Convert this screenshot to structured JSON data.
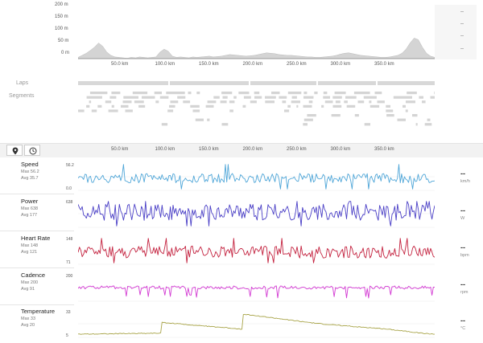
{
  "elevation": {
    "y_ticks": [
      "200 m",
      "150 m",
      "100 m",
      "50 m",
      "0 m"
    ],
    "fill_color": "#d4d4d4",
    "profile": [
      5,
      10,
      15,
      22,
      30,
      40,
      32,
      18,
      10,
      6,
      5,
      4,
      3,
      5,
      4,
      6,
      5,
      4,
      5,
      6,
      18,
      25,
      20,
      8,
      5,
      6,
      5,
      4,
      6,
      5,
      6,
      7,
      8,
      6,
      7,
      8,
      10,
      12,
      11,
      10,
      9,
      8,
      9,
      10,
      12,
      14,
      16,
      15,
      14,
      12,
      11,
      10,
      10,
      9,
      8,
      7,
      6,
      6,
      5,
      5,
      6,
      7,
      8,
      10,
      13,
      15,
      16,
      14,
      12,
      10,
      9,
      8,
      7,
      6,
      5,
      5,
      6,
      8,
      10,
      15,
      25,
      40,
      52,
      48,
      30,
      15,
      8,
      5
    ]
  },
  "x_ticks": [
    "50.0 km",
    "100.0 km",
    "150.0 km",
    "200.0 km",
    "250.0 km",
    "300.0 km",
    "350.0 km"
  ],
  "side_panel": {
    "values": [
      "--",
      "--",
      "--",
      "--"
    ]
  },
  "tracks": {
    "laps_label": "Laps",
    "segments_label": "Segments"
  },
  "tabs": {
    "map_icon": "map-pin-icon",
    "time_icon": "clock-icon"
  },
  "metrics": [
    {
      "key": "speed",
      "title": "Speed",
      "max": "Max 56.2",
      "avg": "Avg 35.7",
      "ymax": "56.2",
      "ymin": "0.0",
      "value": "--",
      "unit": "km/h",
      "color": "#4fa6d8",
      "base": 0.45,
      "amp": 0.35,
      "seed": 3
    },
    {
      "key": "power",
      "title": "Power",
      "max": "Max 638",
      "avg": "Avg 177",
      "ymax": "638",
      "ymin": "",
      "value": "--",
      "unit": "W",
      "color": "#4a3fc6",
      "base": 0.55,
      "amp": 0.6,
      "seed": 7
    },
    {
      "key": "heart",
      "title": "Heart Rate",
      "max": "Max 148",
      "avg": "Avg 121",
      "ymax": "148",
      "ymin": "71",
      "value": "--",
      "unit": "bpm",
      "color": "#c4223f",
      "base": 0.45,
      "amp": 0.45,
      "seed": 11
    },
    {
      "key": "cadence",
      "title": "Cadence",
      "max": "Max 200",
      "avg": "Avg 91",
      "ymax": "200",
      "ymin": "",
      "value": "--",
      "unit": "rpm",
      "color": "#d33ad3",
      "base": 0.5,
      "amp": 0.12,
      "seed": 5
    },
    {
      "key": "temperature",
      "title": "Temperature",
      "max": "Max 33",
      "avg": "Avg 20",
      "ymax": "33",
      "ymin": "5",
      "value": "--",
      "unit": "°C",
      "color": "#a8a448",
      "base": 0.3,
      "amp": 0.02,
      "seed": 2
    }
  ]
}
